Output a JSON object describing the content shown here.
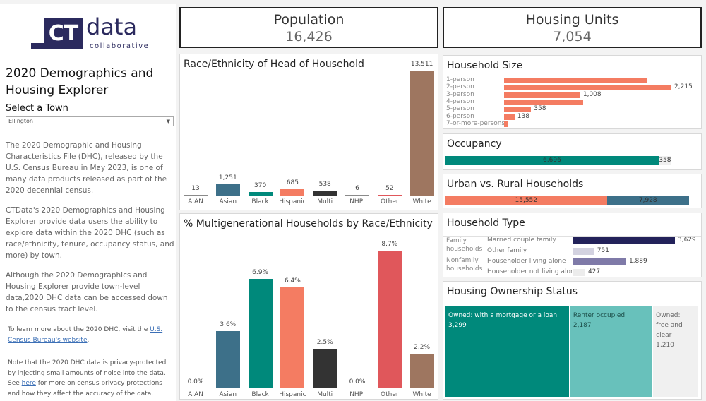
{
  "logo": {
    "text": "CT data collaborative",
    "ct": "CT",
    "data": "data",
    "sub": "collaborative",
    "color": "#2b2a5e"
  },
  "sidebar": {
    "title": "2020 Demographics and Housing Explorer",
    "select_label": "Select a Town",
    "select_value": "Ellington",
    "para1": "The 2020 Demographic and Housing Characteristics File (DHC), released by the U.S. Census Bureau in May 2023, is one of many data products released as part of the 2020 decennial census.",
    "para2": "CTData's 2020 Demographics and Housing Explorer provide data users the ability to explore data within the 2020 DHC (such as race/ethnicity, tenure, occupancy status, and more) by town.",
    "para3": "Although the 2020 Demographics and Housing Explorer provide town-level data,2020 DHC data can be accessed down to the census tract level.",
    "learn_pre": "To learn more about the 2020 DHC, visit the ",
    "learn_link": "U.S. Census Bureau's website",
    "learn_post": ".",
    "note_pre": "Note that the 2020 DHC data is privacy-protected by injecting small amounts of noise into the data. See ",
    "note_link": "here",
    "note_post": " for more on census privacy protections and how they affect the accuracy of the data."
  },
  "kpis": {
    "population": {
      "label": "Population",
      "value": "16,426"
    },
    "housing": {
      "label": "Housing Units",
      "value": "7,054"
    }
  },
  "chart_data": [
    {
      "type": "bar",
      "title": "Race/Ethnicity of Head of Household",
      "categories": [
        "AIAN",
        "Asian",
        "Black",
        "Hispanic",
        "Multi",
        "NHPI",
        "Other",
        "White"
      ],
      "values": [
        13,
        1251,
        370,
        685,
        538,
        6,
        52,
        13511
      ],
      "labels": [
        "13",
        "1,251",
        "370",
        "685",
        "538",
        "6",
        "52",
        "13,511"
      ],
      "colors": [
        "#8a8a8a",
        "#3d7089",
        "#00897b",
        "#f47c62",
        "#333333",
        "#8a8a8a",
        "#e0575b",
        "#9e7660"
      ]
    },
    {
      "type": "bar",
      "title": "% Multigenerational Households by Race/Ethnicity",
      "categories": [
        "AIAN",
        "Asian",
        "Black",
        "Hispanic",
        "Multi",
        "NHPI",
        "Other",
        "White"
      ],
      "values": [
        0.0,
        3.6,
        6.9,
        6.4,
        2.5,
        0.0,
        8.7,
        2.2
      ],
      "labels": [
        "0.0%",
        "3.6%",
        "6.9%",
        "6.4%",
        "2.5%",
        "0.0%",
        "8.7%",
        "2.2%"
      ],
      "colors": [
        "#8a8a8a",
        "#3d7089",
        "#00897b",
        "#f47c62",
        "#333333",
        "#8a8a8a",
        "#e0575b",
        "#9e7660"
      ]
    },
    {
      "type": "bar",
      "orientation": "horizontal",
      "title": "Household Size",
      "categories": [
        "1-person",
        "2-person",
        "3-person",
        "4-person",
        "5-person",
        "6-person",
        "7-or-more-persons"
      ],
      "values": [
        1897,
        2215,
        1008,
        1047,
        358,
        138,
        56
      ],
      "labels": [
        "",
        "2,215",
        "1,008",
        "",
        "358",
        "138",
        ""
      ],
      "color": "#f47c62"
    },
    {
      "type": "bar",
      "orientation": "stacked",
      "title": "Occupancy",
      "values": [
        6696,
        358
      ],
      "labels": [
        "6,696",
        "358"
      ],
      "colors": [
        "#00897b",
        "#f0f0f0"
      ]
    },
    {
      "type": "bar",
      "orientation": "stacked",
      "title": "Urban vs. Rural Households",
      "values": [
        15552,
        7928
      ],
      "labels": [
        "15,552",
        "7,928"
      ],
      "colors": [
        "#f47c62",
        "#3d7089"
      ]
    },
    {
      "type": "bar",
      "orientation": "horizontal",
      "title": "Household Type",
      "groups": [
        "Family households",
        "Nonfamily households"
      ],
      "categories": [
        "Married couple family",
        "Other family",
        "Householder living alone",
        "Householder not living alone"
      ],
      "values": [
        3629,
        751,
        1889,
        427
      ],
      "labels": [
        "3,629",
        "751",
        "1,889",
        "427"
      ],
      "colors": [
        "#23225a",
        "#d3d2e0",
        "#7f7aa8",
        "#ececec"
      ]
    },
    {
      "type": "treemap",
      "title": "Housing Ownership Status",
      "categories": [
        "Owned: with a mortgage or a loan",
        "Renter occupied",
        "Owned: free and clear"
      ],
      "values": [
        3299,
        2187,
        1210
      ],
      "labels": [
        "3,299",
        "2,187",
        "1,210"
      ],
      "colors": [
        "#00897b",
        "#68c1bb",
        "#f0f0f0"
      ]
    }
  ]
}
